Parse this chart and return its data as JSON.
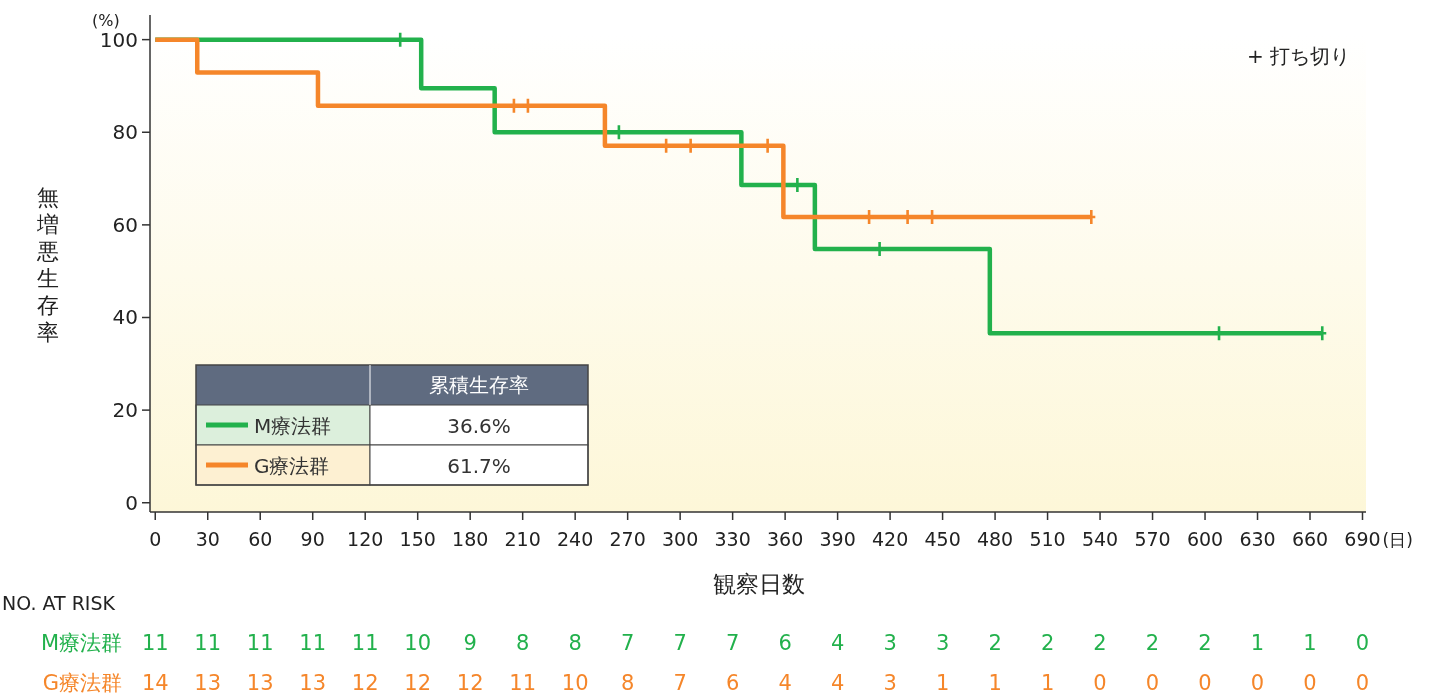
{
  "chart_data": {
    "type": "step",
    "ylabel": "無増悪生存率",
    "xlabel": "観察日数",
    "legend": "bottom left",
    "legend_title": "累積生存率",
    "grid": false,
    "xlim": [
      -3,
      692
    ],
    "ylim": [
      -2,
      101
    ],
    "xticks": [
      0,
      30,
      60,
      90,
      120,
      150,
      180,
      210,
      240,
      270,
      300,
      330,
      360,
      390,
      420,
      450,
      480,
      510,
      540,
      570,
      600,
      630,
      660,
      690
    ],
    "yticks": [
      0,
      20,
      40,
      60,
      80,
      100
    ],
    "series": [
      {
        "name": "M療法群",
        "color": "#22b14c",
        "x": [
          0,
          152,
          194,
          335,
          377,
          477,
          667
        ],
        "values": [
          100,
          89.5,
          80,
          68.6,
          54.8,
          36.6,
          36.6
        ]
      },
      {
        "name": "G療法群",
        "color": "#f5862a",
        "x": [
          0,
          24,
          93,
          257,
          359,
          535
        ],
        "values": [
          100,
          92.9,
          85.7,
          77.1,
          61.7,
          61.7
        ]
      },
      {
        "type": "scatter",
        "marker": "cross",
        "color": "#22b14c",
        "x": [
          140,
          265,
          367,
          414,
          608,
          667
        ],
        "values": [
          100,
          80,
          68.6,
          54.8,
          36.6,
          36.6
        ]
      },
      {
        "type": "scatter",
        "marker": "cross",
        "color": "#f5862a",
        "x": [
          205,
          213,
          292,
          306,
          350,
          408,
          430,
          444,
          535
        ],
        "values": [
          85.7,
          85.7,
          77.1,
          77.1,
          77.1,
          61.7,
          61.7,
          61.7,
          61.7
        ]
      }
    ],
    "annotations": [
      "(%)",
      "(日)",
      "+ 打ち切り",
      "36.6%",
      "61.7%",
      "NO. AT RISK",
      "11 11 11 11 11 10 9 8 8 7 7 7 6 4 3 3 2 2 2 2 2 1 1 0",
      "14 13 13 13 12 12 12 11 10 8 7 6 4 4 3 1 1 1 0 0 0 0 0 0"
    ]
  }
}
